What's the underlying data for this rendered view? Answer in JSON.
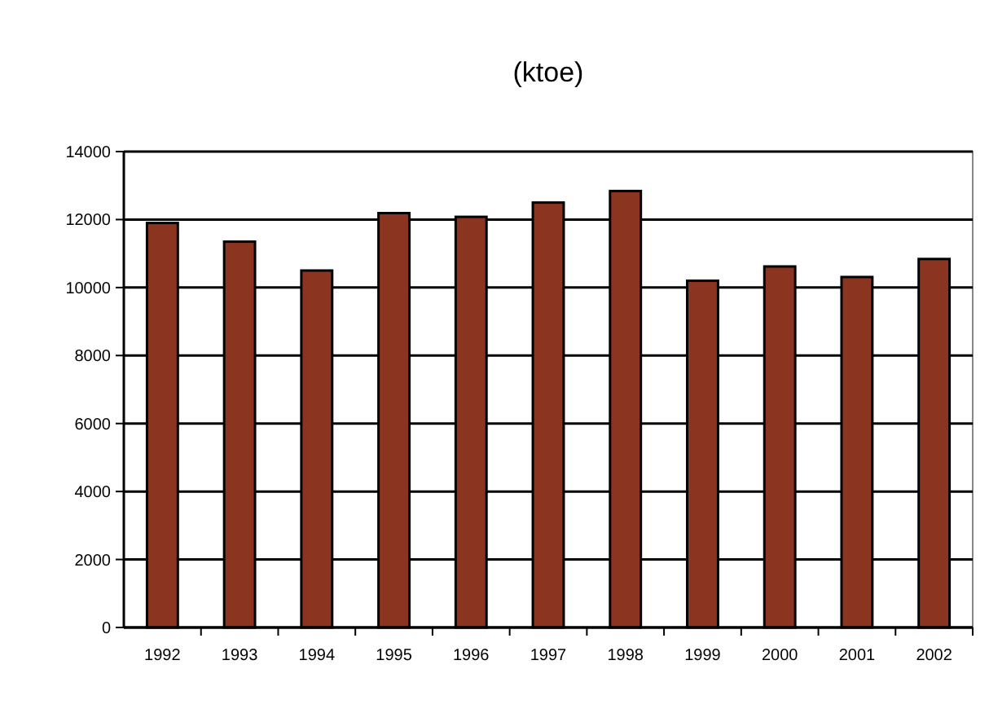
{
  "chart_data": {
    "type": "bar",
    "title": "(ktoe)",
    "categories": [
      "1992",
      "1993",
      "1994",
      "1995",
      "1996",
      "1997",
      "1998",
      "1999",
      "2000",
      "2001",
      "2002"
    ],
    "values": [
      11900,
      11350,
      10500,
      12190,
      12080,
      12500,
      12840,
      10200,
      10620,
      10310,
      10840
    ],
    "color": "#8b3520",
    "ylim": [
      0,
      14000
    ],
    "yticks": [
      0,
      2000,
      4000,
      6000,
      8000,
      10000,
      12000,
      14000
    ],
    "grid": "y"
  }
}
